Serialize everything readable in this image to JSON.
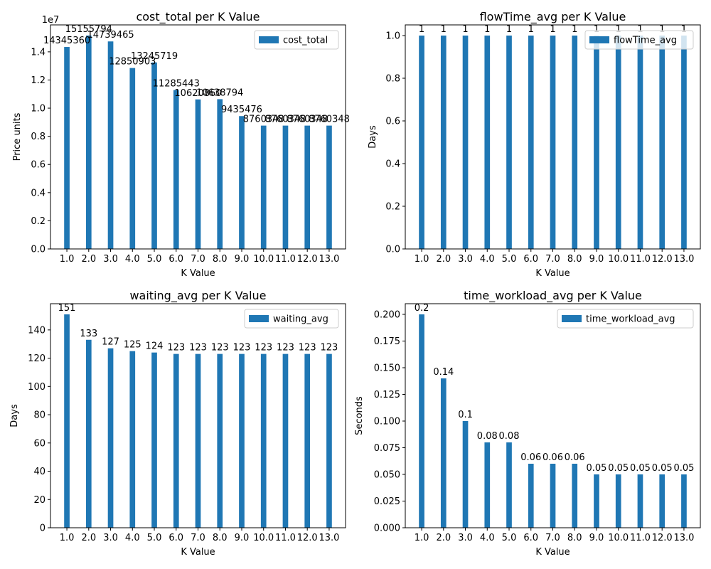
{
  "colors": {
    "bar": "#1f77b4",
    "text": "#000000",
    "axis": "#000000",
    "legend_border": "#cccccc"
  },
  "chart_data": [
    {
      "type": "bar",
      "title": "cost_total per K Value",
      "xlabel": "K Value",
      "ylabel": "Price units",
      "offset_text": "1e7",
      "categories": [
        "1.0",
        "2.0",
        "3.0",
        "4.0",
        "5.0",
        "6.0",
        "7.0",
        "8.0",
        "9.0",
        "10.0",
        "11.0",
        "12.0",
        "13.0"
      ],
      "series": [
        {
          "name": "cost_total",
          "values": [
            14345360,
            15155794,
            14739465,
            12850903,
            13245719,
            11285443,
            10620860,
            10638794,
            9435476,
            8760348,
            8760348,
            8760348,
            8760348
          ]
        }
      ],
      "value_labels": [
        "14345360",
        "15155794",
        "14739465",
        "12850903",
        "13245719",
        "11285443",
        "10620860",
        "10638794",
        "9435476",
        "8760348",
        "8760348",
        "8760348",
        "8760348"
      ],
      "yticks": [
        0,
        2000000,
        4000000,
        6000000,
        8000000,
        10000000,
        12000000,
        14000000
      ],
      "ytick_labels": [
        "0.0",
        "0.2",
        "0.4",
        "0.6",
        "0.8",
        "1.0",
        "1.2",
        "1.4"
      ],
      "ylim": [
        0,
        15913584
      ],
      "legend": "top-right",
      "grid": false
    },
    {
      "type": "bar",
      "title": "flowTime_avg per K Value",
      "xlabel": "K Value",
      "ylabel": "Days",
      "categories": [
        "1.0",
        "2.0",
        "3.0",
        "4.0",
        "5.0",
        "6.0",
        "7.0",
        "8.0",
        "9.0",
        "10.0",
        "11.0",
        "12.0",
        "13.0"
      ],
      "series": [
        {
          "name": "flowTime_avg",
          "values": [
            1,
            1,
            1,
            1,
            1,
            1,
            1,
            1,
            1,
            1,
            1,
            1,
            1
          ]
        }
      ],
      "value_labels": [
        "1",
        "1",
        "1",
        "1",
        "1",
        "1",
        "1",
        "1",
        "1",
        "1",
        "1",
        "1",
        "1"
      ],
      "yticks": [
        0,
        0.2,
        0.4,
        0.6,
        0.8,
        1.0
      ],
      "ytick_labels": [
        "0.0",
        "0.2",
        "0.4",
        "0.6",
        "0.8",
        "1.0"
      ],
      "ylim": [
        0,
        1.05
      ],
      "legend": "top-right",
      "grid": false
    },
    {
      "type": "bar",
      "title": "waiting_avg per K Value",
      "xlabel": "K Value",
      "ylabel": "Days",
      "categories": [
        "1.0",
        "2.0",
        "3.0",
        "4.0",
        "5.0",
        "6.0",
        "7.0",
        "8.0",
        "9.0",
        "10.0",
        "11.0",
        "12.0",
        "13.0"
      ],
      "series": [
        {
          "name": "waiting_avg",
          "values": [
            151,
            133,
            127,
            125,
            124,
            123,
            123,
            123,
            123,
            123,
            123,
            123,
            123
          ]
        }
      ],
      "value_labels": [
        "151",
        "133",
        "127",
        "125",
        "124",
        "123",
        "123",
        "123",
        "123",
        "123",
        "123",
        "123",
        "123"
      ],
      "yticks": [
        0,
        20,
        40,
        60,
        80,
        100,
        120,
        140
      ],
      "ytick_labels": [
        "0",
        "20",
        "40",
        "60",
        "80",
        "100",
        "120",
        "140"
      ],
      "ylim": [
        0,
        158.55
      ],
      "legend": "top-right",
      "grid": false
    },
    {
      "type": "bar",
      "title": "time_workload_avg per K Value",
      "xlabel": "K Value",
      "ylabel": "Seconds",
      "categories": [
        "1.0",
        "2.0",
        "3.0",
        "4.0",
        "5.0",
        "6.0",
        "7.0",
        "8.0",
        "9.0",
        "10.0",
        "11.0",
        "12.0",
        "13.0"
      ],
      "series": [
        {
          "name": "time_workload_avg",
          "values": [
            0.2,
            0.14,
            0.1,
            0.08,
            0.08,
            0.06,
            0.06,
            0.06,
            0.05,
            0.05,
            0.05,
            0.05,
            0.05
          ]
        }
      ],
      "value_labels": [
        "0.2",
        "0.14",
        "0.1",
        "0.08",
        "0.08",
        "0.06",
        "0.06",
        "0.06",
        "0.05",
        "0.05",
        "0.05",
        "0.05",
        "0.05"
      ],
      "yticks": [
        0,
        0.025,
        0.05,
        0.075,
        0.1,
        0.125,
        0.15,
        0.175,
        0.2
      ],
      "ytick_labels": [
        "0.000",
        "0.025",
        "0.050",
        "0.075",
        "0.100",
        "0.125",
        "0.150",
        "0.175",
        "0.200"
      ],
      "ylim": [
        0,
        0.21
      ],
      "legend": "top-right",
      "grid": false
    }
  ]
}
